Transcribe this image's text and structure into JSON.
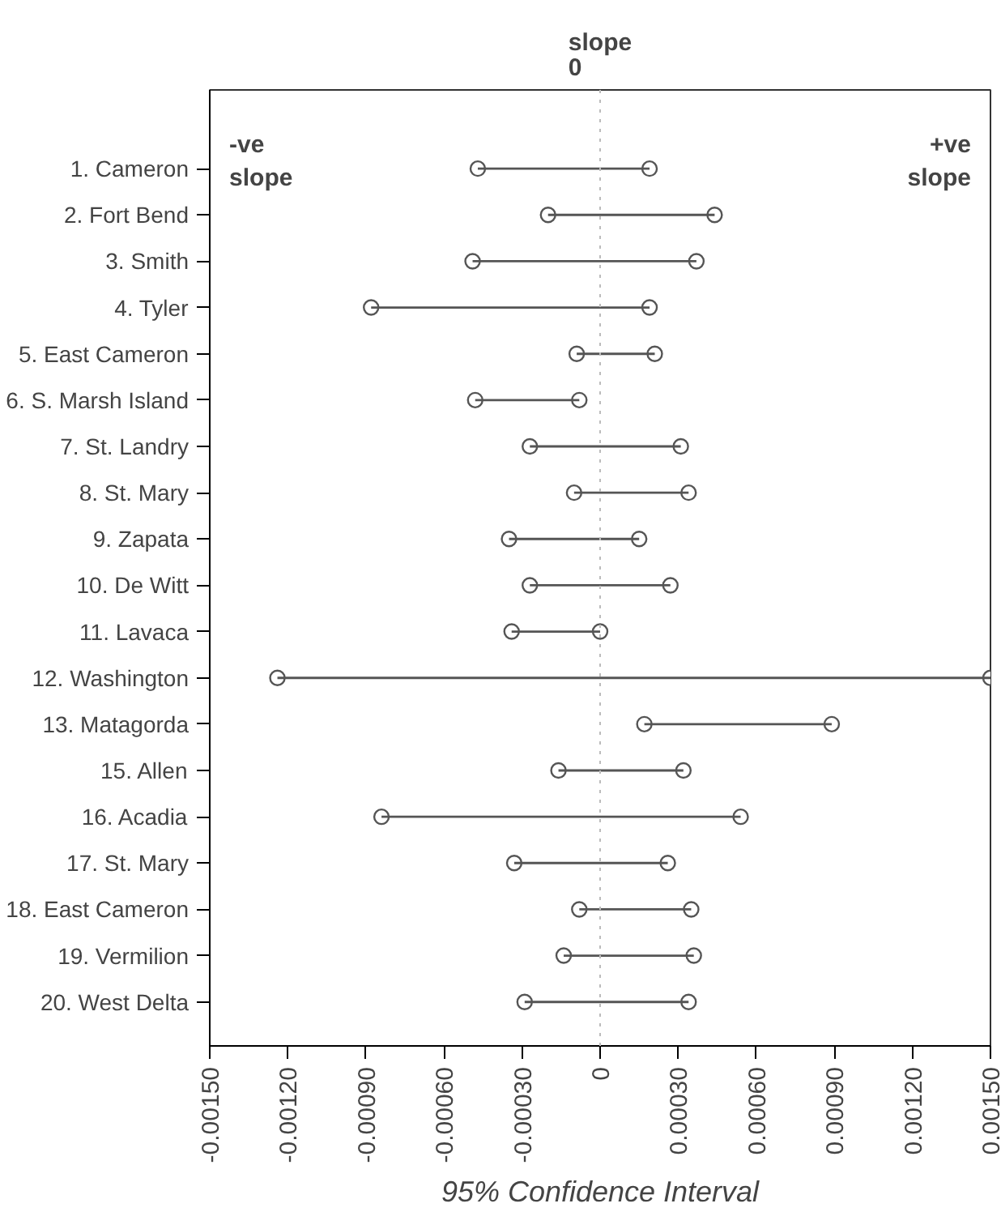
{
  "chart_data": {
    "type": "bar",
    "orientation": "horizontal",
    "marker": "circle",
    "categories": [
      "1. Cameron",
      "2. Fort Bend",
      "3. Smith",
      "4. Tyler",
      "5. East Cameron",
      "6. S. Marsh Island",
      "7. St. Landry",
      "8. St. Mary",
      "9. Zapata",
      "10. De Witt",
      "11. Lavaca",
      "12. Washington",
      "13. Matagorda",
      "15. Allen",
      "16. Acadia",
      "17. St. Mary",
      "18. East Cameron",
      "19. Vermilion",
      "20. West Delta"
    ],
    "base": [
      -0.00047,
      -0.0002,
      -0.00049,
      -0.00088,
      -9e-05,
      -0.00048,
      -0.00027,
      -0.0001,
      -0.00035,
      -0.00027,
      -0.00034,
      -0.00124,
      0.00017,
      -0.00016,
      -0.00084,
      -0.00033,
      -8e-05,
      -0.00014,
      -0.00029
    ],
    "values": [
      0.00066,
      0.00064,
      0.00086,
      0.00107,
      0.0003,
      0.0004,
      0.00058,
      0.00044,
      0.0005,
      0.00054,
      0.00034,
      0.00274,
      0.00072,
      0.00048,
      0.00138,
      0.00059,
      0.00043,
      0.0005,
      0.00063
    ],
    "color": "#555555",
    "series": [
      {
        "type": "scatter",
        "color": "#555555",
        "x": [
          "1. Cameron",
          "2. Fort Bend",
          "3. Smith",
          "4. Tyler",
          "5. East Cameron",
          "6. S. Marsh Island",
          "7. St. Landry",
          "8. St. Mary",
          "9. Zapata",
          "10. De Witt",
          "11. Lavaca",
          "12. Washington",
          "13. Matagorda",
          "15. Allen",
          "16. Acadia",
          "17. St. Mary",
          "18. East Cameron",
          "19. Vermilion",
          "20. West Delta"
        ],
        "values": [
          -0.00047,
          -0.0002,
          -0.00049,
          -0.00088,
          -9e-05,
          -0.00048,
          -0.00027,
          -0.0001,
          -0.00035,
          -0.00027,
          -0.00034,
          -0.00124,
          0.00017,
          -0.00016,
          -0.00084,
          -0.00033,
          -8e-05,
          -0.00014,
          -0.00029
        ]
      },
      {
        "type": "scatter",
        "color": "#555555",
        "x": [
          "1. Cameron",
          "2. Fort Bend",
          "3. Smith",
          "4. Tyler",
          "5. East Cameron",
          "6. S. Marsh Island",
          "7. St. Landry",
          "8. St. Mary",
          "9. Zapata",
          "10. De Witt",
          "11. Lavaca",
          "12. Washington",
          "13. Matagorda",
          "15. Allen",
          "16. Acadia",
          "17. St. Mary",
          "18. East Cameron",
          "19. Vermilion",
          "20. West Delta"
        ],
        "values": [
          0.00019,
          0.00044,
          0.00037,
          0.00019,
          0.00021,
          -8e-05,
          0.00031,
          0.00034,
          0.00015,
          0.00027,
          0,
          0.0015,
          0.00089,
          0.00032,
          0.00054,
          0.00026,
          0.00035,
          0.00036,
          0.00034
        ]
      }
    ],
    "xlabel": "95% Confidence Interval",
    "xlim": [
      -0.0015,
      0.0015
    ],
    "xticks": [
      {
        "value": -0.0015,
        "label": "-0.00150"
      },
      {
        "value": -0.0012,
        "label": "-0.00120"
      },
      {
        "value": -0.0009,
        "label": "-0.00090"
      },
      {
        "value": -0.0006,
        "label": "-0.00060"
      },
      {
        "value": -0.0003,
        "label": "-0.00030"
      },
      {
        "value": 0,
        "label": "0"
      },
      {
        "value": 0.0003,
        "label": "0.00030"
      },
      {
        "value": 0.0006,
        "label": "0.00060"
      },
      {
        "value": 0.0009,
        "label": "0.00090"
      },
      {
        "value": 0.0012,
        "label": "0.00120"
      },
      {
        "value": 0.0015,
        "label": "0.00150"
      }
    ],
    "ref_lines": [
      {
        "axis": "x",
        "value": 0,
        "label": "slope\n0",
        "color": "#bbbbbb",
        "line_style": "dotted"
      }
    ],
    "annotations": [
      "-ve\nslope",
      "+ve\nslope"
    ],
    "grid": false
  }
}
